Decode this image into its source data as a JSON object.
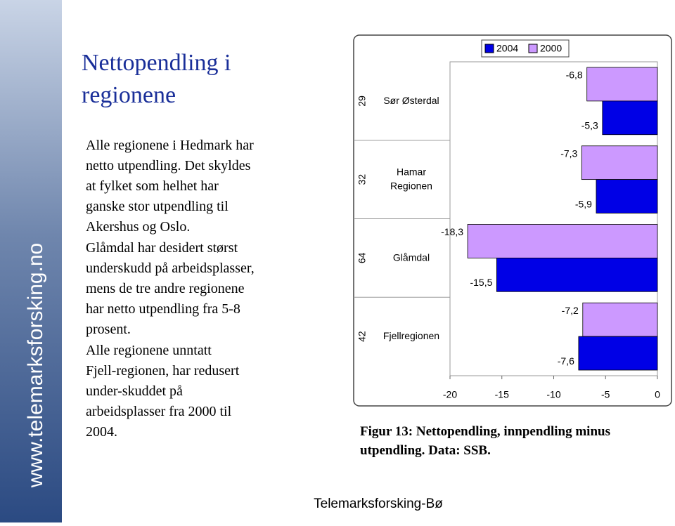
{
  "slide": {
    "side_text": "www.telemarksforsking.no",
    "title": "Nettopendling i regionene",
    "paragraphs": [
      "Alle regionene i Hedmark har netto utpendling. Det skyldes at fylket som helhet har ganske stor utpendling til Akershus og Oslo.",
      "Glåmdal har desidert størst underskudd på arbeidsplasser, mens de tre andre regionene har netto utpendling fra 5-8 prosent.",
      "Alle regionene unntatt Fjell-regionen, har redusert under-skuddet på arbeidsplasser fra 2000 til 2004."
    ],
    "caption": "Figur 13: Nettopendling, innpendling minus utpendling.  Data: SSB.",
    "footer": "Telemarksforsking-Bø"
  },
  "chart_data": {
    "type": "hbar",
    "categories": [
      "Sør Østerdal",
      "Hamar Regionen",
      "Glåmdal",
      "Fjellregionen"
    ],
    "category_codes": [
      "29",
      "32",
      "64",
      "42"
    ],
    "series": [
      {
        "name": "2004",
        "color": "#0000e6",
        "values": [
          -5.3,
          -5.9,
          -15.5,
          -7.6
        ],
        "value_labels": [
          "-5,3",
          "-5,9",
          "-15,5",
          "-7,6"
        ]
      },
      {
        "name": "2000",
        "color": "#cc99ff",
        "values": [
          -6.8,
          -7.3,
          -18.3,
          -7.2
        ],
        "value_labels": [
          "-6,8",
          "-7,3",
          "-18,3",
          "-7,2"
        ]
      }
    ],
    "xlim": [
      -20,
      0
    ],
    "xticks": [
      -20,
      -15,
      -10,
      -5,
      0
    ]
  }
}
